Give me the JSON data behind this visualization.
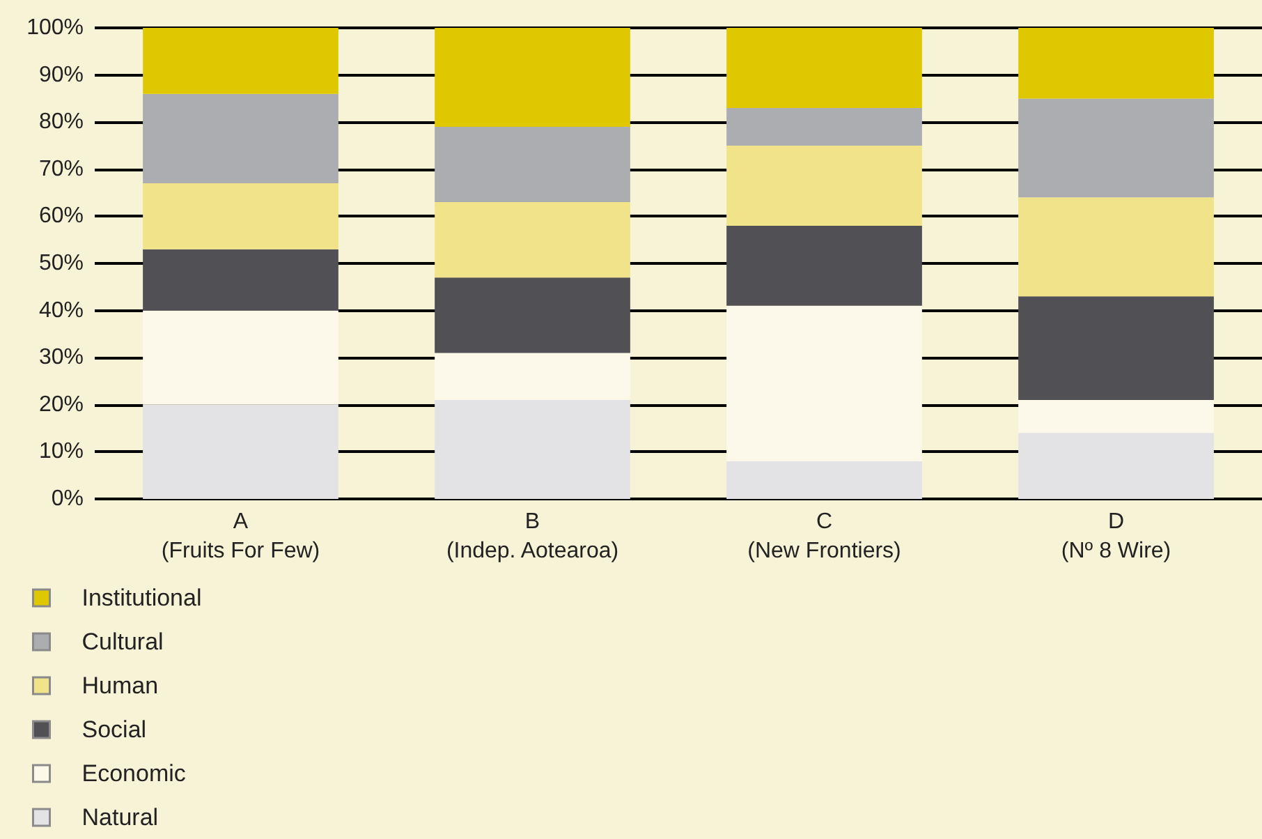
{
  "chart_data": {
    "type": "bar",
    "stacked": true,
    "categories": [
      "A\n(Fruits For Few)",
      "B\n(Indep. Aotearoa)",
      "C\n(New Frontiers)",
      "D\n(Nº 8 Wire)"
    ],
    "series": [
      {
        "name": "Natural",
        "color": "#e3e3e5",
        "values": [
          20,
          21,
          8,
          14
        ]
      },
      {
        "name": "Economic",
        "color": "#fdf9ea",
        "values": [
          20,
          10,
          33,
          7
        ]
      },
      {
        "name": "Social",
        "color": "#515055",
        "values": [
          13,
          16,
          17,
          22
        ]
      },
      {
        "name": "Human",
        "color": "#f0e38a",
        "values": [
          14,
          16,
          17,
          21
        ]
      },
      {
        "name": "Cultural",
        "color": "#acadb0",
        "values": [
          19,
          16,
          8,
          21
        ]
      },
      {
        "name": "Institutional",
        "color": "#dfc800",
        "values": [
          14,
          21,
          17,
          15
        ]
      }
    ],
    "ylim": [
      0,
      100
    ],
    "yticks": [
      {
        "value": 0,
        "label": "0%"
      },
      {
        "value": 10,
        "label": "10%"
      },
      {
        "value": 20,
        "label": "20%"
      },
      {
        "value": 30,
        "label": "30%"
      },
      {
        "value": 40,
        "label": "40%"
      },
      {
        "value": 50,
        "label": "50%"
      },
      {
        "value": 60,
        "label": "60%"
      },
      {
        "value": 70,
        "label": "70%"
      },
      {
        "value": 80,
        "label": "80%"
      },
      {
        "value": 90,
        "label": "90%"
      },
      {
        "value": 100,
        "label": "100%"
      }
    ],
    "grid": "y",
    "legend": "bottom left"
  }
}
